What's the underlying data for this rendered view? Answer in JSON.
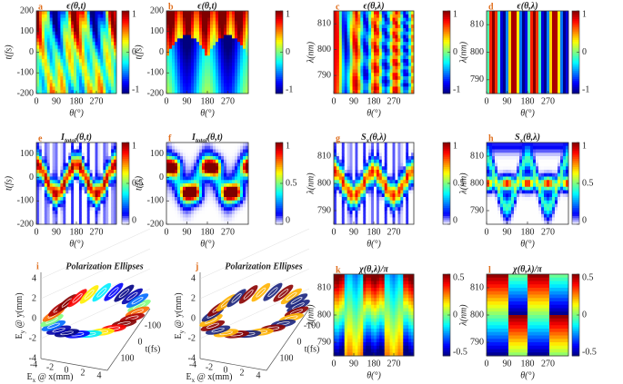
{
  "chart_data": [
    {
      "type": "heatmap",
      "letter": "a",
      "title": "ϵ(θ,t)",
      "xlabel": "θ(°)",
      "ylabel": "t(fs)",
      "xlim": [
        0,
        360
      ],
      "xticks": [
        0,
        90,
        180,
        270
      ],
      "ylim": [
        -200,
        200
      ],
      "yticks": [
        200,
        100,
        0,
        -100,
        -200
      ],
      "clim": [
        -1,
        1
      ],
      "cticks": [
        1,
        0,
        -1
      ],
      "colormap": "jet"
    },
    {
      "type": "heatmap",
      "letter": "b",
      "title": "ϵ(θ,t)",
      "xlabel": "θ(°)",
      "ylabel": "t(fs)",
      "xlim": [
        0,
        360
      ],
      "xticks": [
        0,
        90,
        180,
        270
      ],
      "ylim": [
        -200,
        200
      ],
      "yticks": [
        200,
        100,
        0,
        -100,
        -200
      ],
      "clim": [
        -1,
        1
      ],
      "cticks": [
        1,
        0,
        -1
      ],
      "colormap": "jet"
    },
    {
      "type": "heatmap",
      "letter": "c",
      "title": "ϵ(θ,λ)",
      "xlabel": "θ(°)",
      "ylabel": "λ(nm)",
      "xlim": [
        0,
        360
      ],
      "xticks": [
        0,
        90,
        180,
        270
      ],
      "ylim": [
        783,
        815
      ],
      "yticks": [
        810,
        800,
        790
      ],
      "clim": [
        -1,
        1
      ],
      "cticks": [
        1,
        0,
        -1
      ],
      "colormap": "jet"
    },
    {
      "type": "heatmap",
      "letter": "d",
      "title": "ϵ(θ,λ)",
      "xlabel": "θ(°)",
      "ylabel": "λ(nm)",
      "xlim": [
        0,
        360
      ],
      "xticks": [
        0,
        90,
        180,
        270
      ],
      "ylim": [
        785,
        815
      ],
      "yticks": [
        810,
        800,
        790
      ],
      "clim": [
        -1,
        1
      ],
      "cticks": [
        1,
        0,
        -1
      ],
      "colormap": "jet"
    },
    {
      "type": "heatmap",
      "letter": "e",
      "title": {
        "main": "I",
        "sub": "total",
        "rest": "(θ,t)"
      },
      "xlabel": "θ(°)",
      "ylabel": "t(fs)",
      "xlim": [
        0,
        360
      ],
      "xticks": [
        0,
        90,
        180,
        270
      ],
      "ylim": [
        -200,
        150
      ],
      "yticks": [
        100,
        0,
        -100,
        -200
      ],
      "clim": [
        0,
        1
      ],
      "cticks": [
        1,
        0.5,
        0
      ],
      "colormap": "white-jet"
    },
    {
      "type": "heatmap",
      "letter": "f",
      "title": {
        "main": "I",
        "sub": "total",
        "rest": "(θ,t)"
      },
      "xlabel": "θ(°)",
      "ylabel": "t(fs)",
      "xlim": [
        0,
        360
      ],
      "xticks": [
        0,
        90,
        180,
        270
      ],
      "ylim": [
        -200,
        150
      ],
      "yticks": [
        100,
        0,
        -100,
        -200
      ],
      "clim": [
        0,
        1
      ],
      "cticks": [
        1,
        0.5,
        0
      ],
      "colormap": "white-jet"
    },
    {
      "type": "heatmap",
      "letter": "g",
      "title": {
        "main": "S",
        "sub": "x",
        "rest": "(θ,λ)"
      },
      "xlabel": "θ(°)",
      "ylabel": "λ(nm)",
      "xlim": [
        0,
        360
      ],
      "xticks": [
        0,
        90,
        180,
        270
      ],
      "ylim": [
        785,
        815
      ],
      "yticks": [
        810,
        800,
        790
      ],
      "clim": [
        0,
        1
      ],
      "cticks": [
        1,
        0.5,
        0
      ],
      "colormap": "white-jet"
    },
    {
      "type": "heatmap",
      "letter": "h",
      "title": {
        "main": "S",
        "sub": "x",
        "rest": "(θ,λ)"
      },
      "xlabel": "θ(°)",
      "ylabel": "λ(nm)",
      "xlim": [
        0,
        360
      ],
      "xticks": [
        0,
        90,
        180,
        270
      ],
      "ylim": [
        785,
        815
      ],
      "yticks": [
        810,
        800,
        790
      ],
      "clim": [
        0,
        1
      ],
      "cticks": [
        1,
        0.5,
        0
      ],
      "colormap": "white-jet"
    },
    {
      "type": "ellipses",
      "letter": "i",
      "title": "Polarization Ellipses",
      "ylabel": {
        "main": "E",
        "sub": "y",
        "rest": " @ y(mm)"
      },
      "xlabel": {
        "main": "E",
        "sub": "x",
        "rest": " @ x(mm)"
      },
      "tlabel": "t(fs)",
      "yticks": [
        4,
        2,
        0,
        -2,
        -4
      ],
      "xticks": [
        -4,
        -2,
        0,
        2,
        4
      ],
      "tticks": [
        100,
        0,
        -100
      ]
    },
    {
      "type": "ellipses",
      "letter": "j",
      "title": "Polarization Ellipses",
      "ylabel": {
        "main": "E",
        "sub": "y",
        "rest": " @ y(mm)"
      },
      "xlabel": {
        "main": "E",
        "sub": "x",
        "rest": " @ x(mm)"
      },
      "tlabel": "t(fs)",
      "yticks": [
        4,
        2,
        0,
        -2,
        -4
      ],
      "xticks": [
        -4,
        -2,
        0,
        2,
        4
      ],
      "tticks": [
        100,
        0,
        -100
      ]
    },
    {
      "type": "heatmap",
      "letter": "k",
      "title": "χ(θ,λ)/π",
      "xlabel": "θ(°)",
      "ylabel": "λ(nm)",
      "xlim": [
        0,
        360
      ],
      "xticks": [
        0,
        90,
        180,
        270
      ],
      "ylim": [
        785,
        815
      ],
      "yticks": [
        810,
        800,
        790
      ],
      "clim": [
        -0.5,
        0.5
      ],
      "cticks": [
        0.5,
        0,
        -0.5
      ],
      "colormap": "jet"
    },
    {
      "type": "heatmap",
      "letter": "l",
      "title": "χ(θ,λ)/π",
      "xlabel": "θ(°)",
      "ylabel": "λ(nm)",
      "xlim": [
        0,
        360
      ],
      "xticks": [
        0,
        90,
        180,
        270
      ],
      "ylim": [
        785,
        815
      ],
      "yticks": [
        810,
        800,
        790
      ],
      "clim": [
        -0.5,
        0.5
      ],
      "cticks": [
        0.5,
        0,
        -0.5
      ],
      "colormap": "jet"
    }
  ]
}
